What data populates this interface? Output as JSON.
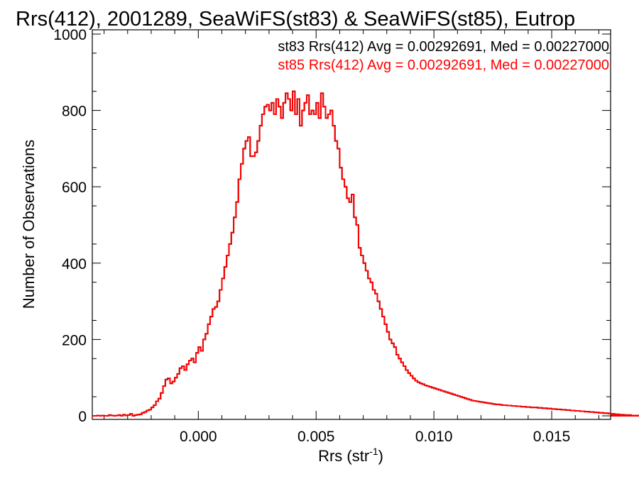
{
  "chart_data": {
    "type": "step-histogram",
    "title": "Rrs(412), 2001289, SeaWiFS(st83) & SeaWiFS(st85), Eutrop",
    "xlabel": "Rrs (str",
    "xlabel_sup": "-1",
    "xlabel_close": ")",
    "ylabel": "Number of Observations",
    "xlim": [
      -0.0045,
      0.0175
    ],
    "ylim": [
      0,
      1000
    ],
    "x_ticks": [
      0.0,
      0.005,
      0.01,
      0.015
    ],
    "x_tick_labels": [
      "0.000",
      "0.005",
      "0.010",
      "0.015"
    ],
    "y_ticks": [
      0,
      200,
      400,
      600,
      800,
      1000
    ],
    "y_tick_labels": [
      "0",
      "200",
      "400",
      "600",
      "800",
      "1000"
    ],
    "grid": false,
    "bin_width": 0.0001,
    "bin_start": -0.0045,
    "annotations": [
      {
        "text": "st83 Rrs(412) Avg = 0.00292691, Med = 0.00227000",
        "color": "#000000"
      },
      {
        "text": "st85 Rrs(412) Avg = 0.00292691, Med = 0.00227000",
        "color": "#ff0000"
      }
    ],
    "series": [
      {
        "name": "st83",
        "color": "#000000",
        "note": "identical to st85, drawn underneath"
      },
      {
        "name": "st85",
        "color": "#ff0000"
      }
    ],
    "values": [
      0,
      0,
      1,
      0,
      1,
      0,
      0,
      2,
      1,
      0,
      1,
      2,
      0,
      3,
      1,
      2,
      5,
      0,
      2,
      3,
      4,
      8,
      10,
      14,
      16,
      22,
      28,
      38,
      45,
      60,
      78,
      95,
      98,
      85,
      90,
      100,
      110,
      125,
      130,
      120,
      135,
      145,
      150,
      140,
      165,
      180,
      170,
      200,
      215,
      240,
      260,
      280,
      285,
      300,
      330,
      360,
      390,
      420,
      450,
      480,
      520,
      560,
      620,
      660,
      700,
      720,
      730,
      680,
      680,
      690,
      720,
      760,
      790,
      810,
      815,
      800,
      820,
      790,
      830,
      810,
      780,
      820,
      845,
      830,
      800,
      850,
      790,
      830,
      760,
      800,
      820,
      840,
      790,
      800,
      790,
      820,
      780,
      845,
      810,
      780,
      790,
      800,
      760,
      720,
      700,
      650,
      620,
      600,
      570,
      560,
      580,
      520,
      500,
      440,
      420,
      400,
      380,
      360,
      350,
      330,
      320,
      300,
      280,
      260,
      240,
      220,
      200,
      190,
      180,
      160,
      150,
      140,
      130,
      120,
      112,
      105,
      98,
      92,
      88,
      85,
      83,
      80,
      78,
      76,
      74,
      72,
      70,
      68,
      66,
      64,
      62,
      60,
      58,
      56,
      54,
      52,
      50,
      48,
      46,
      44,
      42,
      40,
      39,
      38,
      37,
      36,
      35,
      34,
      33,
      32,
      31,
      30,
      30,
      29,
      28,
      28,
      27,
      27,
      26,
      26,
      25,
      25,
      24,
      24,
      23,
      23,
      22,
      22,
      22,
      21,
      21,
      20,
      20,
      19,
      19,
      18,
      18,
      17,
      17,
      16,
      16,
      15,
      15,
      14,
      14,
      13,
      13,
      12,
      12,
      11,
      11,
      10,
      10,
      9,
      9,
      8,
      8,
      7,
      7,
      6,
      6,
      5,
      5,
      4,
      4,
      3,
      3,
      2,
      2,
      2,
      1,
      1,
      1,
      0,
      1,
      0,
      1,
      0,
      1
    ]
  }
}
